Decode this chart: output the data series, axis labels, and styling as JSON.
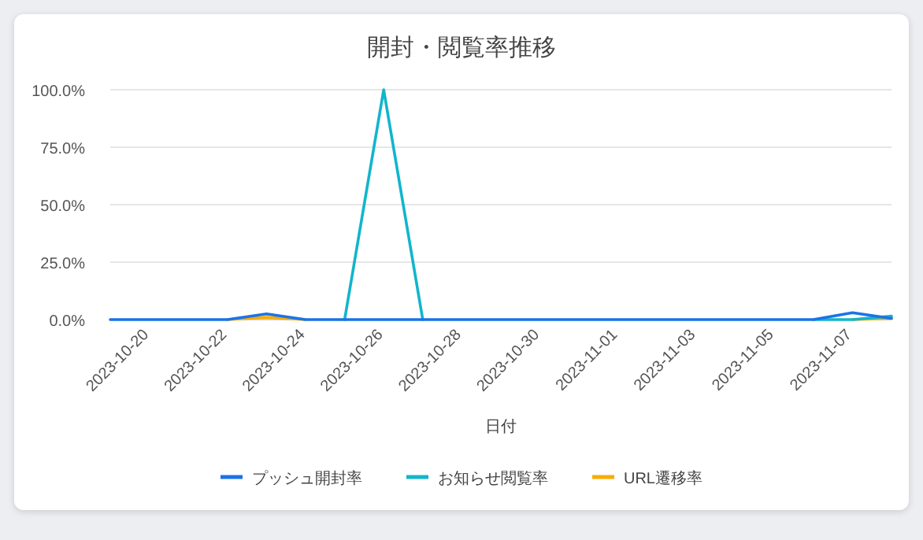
{
  "chart_data": {
    "type": "line",
    "title": "開封・閲覧率推移",
    "xlabel": "日付",
    "x": [
      "2023-10-19",
      "2023-10-20",
      "2023-10-21",
      "2023-10-22",
      "2023-10-23",
      "2023-10-24",
      "2023-10-25",
      "2023-10-26",
      "2023-10-27",
      "2023-10-28",
      "2023-10-29",
      "2023-10-30",
      "2023-10-31",
      "2023-11-01",
      "2023-11-02",
      "2023-11-03",
      "2023-11-04",
      "2023-11-05",
      "2023-11-06",
      "2023-11-07",
      "2023-11-08"
    ],
    "series": [
      {
        "name": "プッシュ開封率",
        "color": "#1a73e8",
        "values": [
          0,
          0,
          0,
          0,
          2.5,
          0,
          0,
          0,
          0,
          0,
          0,
          0,
          0,
          0,
          0,
          0,
          0,
          0,
          0,
          3,
          0.5
        ]
      },
      {
        "name": "お知らせ閲覧率",
        "color": "#12b5cb",
        "values": [
          null,
          null,
          null,
          null,
          null,
          null,
          0,
          100,
          0,
          null,
          null,
          null,
          null,
          null,
          null,
          null,
          null,
          null,
          0,
          0,
          1.5
        ]
      },
      {
        "name": "URL遷移率",
        "color": "#f9ab00",
        "values": [
          null,
          null,
          null,
          0,
          1,
          0,
          null,
          null,
          null,
          null,
          null,
          null,
          null,
          null,
          null,
          null,
          null,
          null,
          null,
          0,
          0.5
        ]
      }
    ],
    "xlim": [
      "2023-10-19",
      "2023-11-08"
    ],
    "xticks": [
      "2023-10-20",
      "2023-10-22",
      "2023-10-24",
      "2023-10-26",
      "2023-10-28",
      "2023-10-30",
      "2023-11-01",
      "2023-11-03",
      "2023-11-05",
      "2023-11-07"
    ],
    "ylim": [
      0,
      100
    ],
    "yticks": [
      {
        "value": 0,
        "label": "0.0%"
      },
      {
        "value": 25,
        "label": "25.0%"
      },
      {
        "value": 50,
        "label": "50.0%"
      },
      {
        "value": 75,
        "label": "75.0%"
      },
      {
        "value": 100,
        "label": "100.0%"
      }
    ],
    "grid": "y",
    "legend": "bottom",
    "marker": "none",
    "line_style": "solid"
  }
}
